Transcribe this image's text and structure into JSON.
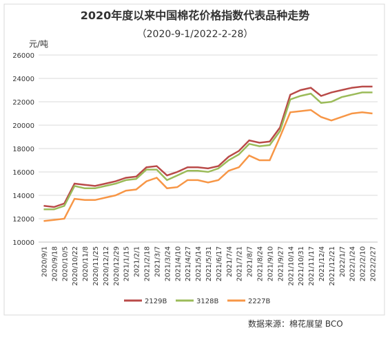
{
  "chart_data": {
    "type": "line",
    "title": "2020年度以来中国棉花价格指数代表品种走势",
    "subtitle": "（2020-9-1/2022-2-28）",
    "y_label": "元/吨",
    "source": "数据来源：棉花展望 BCO",
    "categories": [
      "2020/9/1",
      "2020/9/18",
      "2020/10/5",
      "2020/10/22",
      "2020/11/8",
      "2020/11/25",
      "2020/12/12",
      "2020/12/29",
      "2021/1/15",
      "2021/2/1",
      "2021/2/18",
      "2021/3/7",
      "2021/3/24",
      "2021/4/10",
      "2021/4/27",
      "2021/5/14",
      "2021/5/31",
      "2021/6/17",
      "2021/7/4",
      "2021/7/21",
      "2021/8/7",
      "2021/8/24",
      "2021/9/10",
      "2021/9/27",
      "2021/10/14",
      "2021/10/31",
      "2021/11/17",
      "2021/12/4",
      "2021/12/21",
      "2022/1/7",
      "2022/1/24",
      "2022/2/10",
      "2022/2/27"
    ],
    "series": [
      {
        "name": "2129B",
        "color": "#b94a48",
        "values": [
          13100,
          13000,
          13300,
          15000,
          14900,
          14800,
          15000,
          15200,
          15500,
          15600,
          16400,
          16500,
          15700,
          16000,
          16400,
          16400,
          16300,
          16500,
          17300,
          17800,
          18700,
          18500,
          18600,
          19800,
          22600,
          23000,
          23200,
          22500,
          22800,
          23000,
          23200,
          23300,
          23300
        ]
      },
      {
        "name": "3128B",
        "color": "#9bbb59",
        "values": [
          12800,
          12800,
          13100,
          14800,
          14600,
          14600,
          14800,
          15000,
          15300,
          15400,
          16200,
          16200,
          15300,
          15700,
          16100,
          16100,
          16000,
          16300,
          17000,
          17500,
          18400,
          18200,
          18300,
          19500,
          22200,
          22500,
          22700,
          21900,
          22000,
          22400,
          22600,
          22800,
          22800
        ]
      },
      {
        "name": "2227B",
        "color": "#f79646",
        "values": [
          11800,
          11900,
          12000,
          13700,
          13600,
          13600,
          13800,
          14000,
          14400,
          14500,
          15200,
          15500,
          14600,
          14700,
          15300,
          15300,
          15100,
          15300,
          16100,
          16400,
          17400,
          17000,
          17000,
          19000,
          21100,
          21200,
          21300,
          20700,
          20400,
          20700,
          21000,
          21100,
          21000
        ]
      }
    ],
    "ylim": [
      10000,
      26000
    ],
    "yticks": [
      10000,
      12000,
      14000,
      16000,
      18000,
      20000,
      22000,
      24000,
      26000
    ],
    "grid": true
  }
}
